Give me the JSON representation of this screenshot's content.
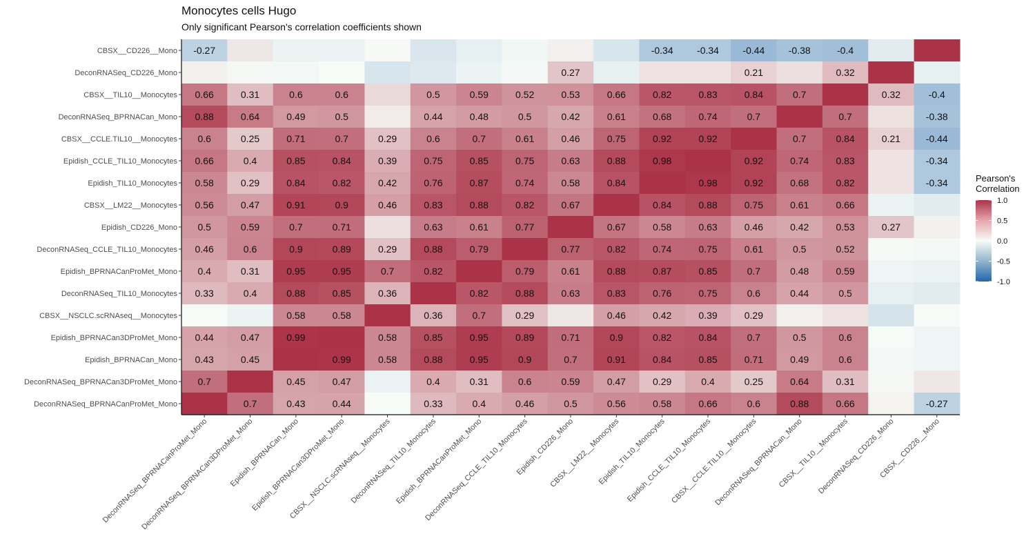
{
  "chart_data": {
    "type": "heatmap",
    "title": "Monocytes cells Hugo",
    "subtitle": "Only significant Pearson's correlation coefficients shown",
    "legend": {
      "title_line1": "Pearson's",
      "title_line2": "Correlation",
      "ticks": [
        1.0,
        0.5,
        0.0,
        -0.5,
        -1.0
      ],
      "tick_labels": [
        "1.0",
        "0.5",
        "0.0",
        "-0.5",
        "-1.0"
      ],
      "low_color": "#2166ac",
      "mid_color": "#f7fbf7",
      "high_color": "#ab3348",
      "placement": "right"
    },
    "row_labels": [
      "CBSX__CD226__Mono",
      "DeconRNASeq_CD226_Mono",
      "CBSX__TIL10__Monocytes",
      "DeconRNASeq_BPRNACan_Mono",
      "CBSX__CCLE.TIL10__Monocytes",
      "Epidish_CCLE_TIL10_Monocytes",
      "Epidish_TIL10_Monocytes",
      "CBSX__LM22__Monocytes",
      "Epidish_CD226_Mono",
      "DeconRNASeq_CCLE_TIL10_Monocytes",
      "Epidish_BPRNACanProMet_Mono",
      "DeconRNASeq_TIL10_Monocytes",
      "CBSX__NSCLC.scRNAseq__Monocytes",
      "Epidish_BPRNACan3DProMet_Mono",
      "Epidish_BPRNACan_Mono",
      "DeconRNASeq_BPRNACan3DProMet_Mono",
      "DeconRNASeq_BPRNACanProMet_Mono"
    ],
    "col_labels": [
      "DeconRNASeq_BPRNACanProMet_Mono",
      "DeconRNASeq_BPRNACan3DProMet_Mono",
      "Epidish_BPRNACan_Mono",
      "Epidish_BPRNACan3DProMet_Mono",
      "CBSX__NSCLC.scRNAseq__Monocytes",
      "DeconRNASeq_TIL10_Monocytes",
      "Epidish_BPRNACanProMet_Mono",
      "DeconRNASeq_CCLE_TIL10_Monocytes",
      "Epidish_CD226_Mono",
      "CBSX__LM22__Monocytes",
      "Epidish_TIL10_Monocytes",
      "Epidish_CCLE_TIL10_Monocytes",
      "CBSX__CCLE.TIL10__Monocytes",
      "DeconRNASeq_BPRNACan_Mono",
      "CBSX__TIL10__Monocytes",
      "DeconRNASeq_CD226_Mono",
      "CBSX__CD226__Mono"
    ],
    "values": [
      [
        -0.27,
        0.1,
        -0.05,
        -0.06,
        0.01,
        -0.14,
        -0.08,
        -0.03,
        0.06,
        -0.15,
        -0.34,
        -0.34,
        -0.44,
        -0.38,
        -0.4,
        -0.1,
        1.0
      ],
      [
        0.05,
        0.02,
        -0.02,
        0.0,
        -0.15,
        -0.12,
        -0.05,
        -0.02,
        0.27,
        -0.07,
        0.12,
        0.12,
        0.21,
        0.14,
        0.32,
        1.0,
        -0.08
      ],
      [
        0.66,
        0.31,
        0.6,
        0.6,
        0.17,
        0.5,
        0.59,
        0.52,
        0.53,
        0.66,
        0.82,
        0.83,
        0.84,
        0.7,
        1.0,
        0.32,
        -0.4
      ],
      [
        0.88,
        0.64,
        0.49,
        0.5,
        0.08,
        0.44,
        0.48,
        0.5,
        0.42,
        0.61,
        0.68,
        0.74,
        0.7,
        1.0,
        0.7,
        0.13,
        -0.38
      ],
      [
        0.6,
        0.25,
        0.71,
        0.7,
        0.29,
        0.6,
        0.7,
        0.61,
        0.46,
        0.75,
        0.92,
        0.92,
        1.0,
        0.7,
        0.84,
        0.21,
        -0.44
      ],
      [
        0.66,
        0.4,
        0.85,
        0.84,
        0.39,
        0.75,
        0.85,
        0.75,
        0.63,
        0.88,
        0.98,
        1.0,
        0.92,
        0.74,
        0.83,
        0.12,
        -0.34
      ],
      [
        0.58,
        0.29,
        0.84,
        0.82,
        0.42,
        0.76,
        0.87,
        0.74,
        0.58,
        0.84,
        1.0,
        0.98,
        0.92,
        0.68,
        0.82,
        0.12,
        -0.34
      ],
      [
        0.56,
        0.47,
        0.91,
        0.9,
        0.46,
        0.83,
        0.88,
        0.82,
        0.67,
        1.0,
        0.84,
        0.88,
        0.75,
        0.61,
        0.66,
        -0.05,
        -0.1
      ],
      [
        0.5,
        0.59,
        0.7,
        0.71,
        0.14,
        0.63,
        0.61,
        0.77,
        1.0,
        0.67,
        0.58,
        0.63,
        0.46,
        0.42,
        0.53,
        0.27,
        0.05
      ],
      [
        0.46,
        0.6,
        0.9,
        0.89,
        0.29,
        0.88,
        0.79,
        1.0,
        0.77,
        0.82,
        0.74,
        0.75,
        0.61,
        0.5,
        0.52,
        -0.01,
        -0.02
      ],
      [
        0.4,
        0.31,
        0.95,
        0.95,
        0.7,
        0.82,
        1.0,
        0.79,
        0.61,
        0.88,
        0.87,
        0.85,
        0.7,
        0.48,
        0.59,
        -0.04,
        -0.06
      ],
      [
        0.33,
        0.4,
        0.88,
        0.85,
        0.36,
        1.0,
        0.82,
        0.88,
        0.63,
        0.83,
        0.76,
        0.75,
        0.6,
        0.44,
        0.5,
        -0.08,
        -0.1
      ],
      [
        0.0,
        -0.05,
        0.58,
        0.58,
        1.0,
        0.36,
        0.7,
        0.29,
        0.1,
        0.46,
        0.42,
        0.39,
        0.29,
        0.06,
        0.12,
        -0.16,
        0.0
      ],
      [
        0.44,
        0.47,
        0.99,
        1.0,
        0.58,
        0.85,
        0.95,
        0.89,
        0.71,
        0.9,
        0.82,
        0.84,
        0.7,
        0.5,
        0.6,
        0.0,
        -0.04
      ],
      [
        0.43,
        0.45,
        1.0,
        0.99,
        0.58,
        0.88,
        0.95,
        0.9,
        0.7,
        0.91,
        0.84,
        0.85,
        0.71,
        0.49,
        0.6,
        -0.02,
        -0.04
      ],
      [
        0.7,
        1.0,
        0.45,
        0.47,
        -0.06,
        0.4,
        0.31,
        0.6,
        0.59,
        0.47,
        0.29,
        0.4,
        0.25,
        0.64,
        0.31,
        0.02,
        0.1
      ],
      [
        1.0,
        0.7,
        0.43,
        0.44,
        0.0,
        0.33,
        0.4,
        0.46,
        0.5,
        0.56,
        0.58,
        0.66,
        0.6,
        0.88,
        0.66,
        0.04,
        -0.27
      ]
    ],
    "labels": [
      [
        "-0.27",
        "",
        "",
        "",
        "",
        "",
        "",
        "",
        "",
        "",
        "-0.34",
        "-0.34",
        "-0.44",
        "-0.38",
        "-0.4",
        "",
        ""
      ],
      [
        "",
        "",
        "",
        "",
        "",
        "",
        "",
        "",
        "0.27",
        "",
        "",
        "",
        "0.21",
        "",
        "0.32",
        "",
        ""
      ],
      [
        "0.66",
        "0.31",
        "0.6",
        "0.6",
        "",
        "0.5",
        "0.59",
        "0.52",
        "0.53",
        "0.66",
        "0.82",
        "0.83",
        "0.84",
        "0.7",
        "",
        "0.32",
        "-0.4"
      ],
      [
        "0.88",
        "0.64",
        "0.49",
        "0.5",
        "",
        "0.44",
        "0.48",
        "0.5",
        "0.42",
        "0.61",
        "0.68",
        "0.74",
        "0.7",
        "",
        "0.7",
        "",
        "-0.38"
      ],
      [
        "0.6",
        "0.25",
        "0.71",
        "0.7",
        "0.29",
        "0.6",
        "0.7",
        "0.61",
        "0.46",
        "0.75",
        "0.92",
        "0.92",
        "",
        "0.7",
        "0.84",
        "0.21",
        "-0.44"
      ],
      [
        "0.66",
        "0.4",
        "0.85",
        "0.84",
        "0.39",
        "0.75",
        "0.85",
        "0.75",
        "0.63",
        "0.88",
        "0.98",
        "",
        "0.92",
        "0.74",
        "0.83",
        "",
        "-0.34"
      ],
      [
        "0.58",
        "0.29",
        "0.84",
        "0.82",
        "0.42",
        "0.76",
        "0.87",
        "0.74",
        "0.58",
        "0.84",
        "",
        "0.98",
        "0.92",
        "0.68",
        "0.82",
        "",
        "-0.34"
      ],
      [
        "0.56",
        "0.47",
        "0.91",
        "0.9",
        "0.46",
        "0.83",
        "0.88",
        "0.82",
        "0.67",
        "",
        "0.84",
        "0.88",
        "0.75",
        "0.61",
        "0.66",
        "",
        ""
      ],
      [
        "0.5",
        "0.59",
        "0.7",
        "0.71",
        "",
        "0.63",
        "0.61",
        "0.77",
        "",
        "0.67",
        "0.58",
        "0.63",
        "0.46",
        "0.42",
        "0.53",
        "0.27",
        ""
      ],
      [
        "0.46",
        "0.6",
        "0.9",
        "0.89",
        "0.29",
        "0.88",
        "0.79",
        "",
        "0.77",
        "0.82",
        "0.74",
        "0.75",
        "0.61",
        "0.5",
        "0.52",
        "",
        ""
      ],
      [
        "0.4",
        "0.31",
        "0.95",
        "0.95",
        "0.7",
        "0.82",
        "",
        "0.79",
        "0.61",
        "0.88",
        "0.87",
        "0.85",
        "0.7",
        "0.48",
        "0.59",
        "",
        ""
      ],
      [
        "0.33",
        "0.4",
        "0.88",
        "0.85",
        "0.36",
        "",
        "0.82",
        "0.88",
        "0.63",
        "0.83",
        "0.76",
        "0.75",
        "0.6",
        "0.44",
        "0.5",
        "",
        ""
      ],
      [
        "",
        "",
        "0.58",
        "0.58",
        "",
        "0.36",
        "0.7",
        "0.29",
        "",
        "0.46",
        "0.42",
        "0.39",
        "0.29",
        "",
        "",
        "",
        ""
      ],
      [
        "0.44",
        "0.47",
        "0.99",
        "",
        "0.58",
        "0.85",
        "0.95",
        "0.89",
        "0.71",
        "0.9",
        "0.82",
        "0.84",
        "0.7",
        "0.5",
        "0.6",
        "",
        ""
      ],
      [
        "0.43",
        "0.45",
        "",
        "0.99",
        "0.58",
        "0.88",
        "0.95",
        "0.9",
        "0.7",
        "0.91",
        "0.84",
        "0.85",
        "0.71",
        "0.49",
        "0.6",
        "",
        ""
      ],
      [
        "0.7",
        "",
        "0.45",
        "0.47",
        "",
        "0.4",
        "0.31",
        "0.6",
        "0.59",
        "0.47",
        "0.29",
        "0.4",
        "0.25",
        "0.64",
        "0.31",
        "",
        ""
      ],
      [
        "",
        "0.7",
        "0.43",
        "0.44",
        "",
        "0.33",
        "0.4",
        "0.46",
        "0.5",
        "0.56",
        "0.58",
        "0.66",
        "0.6",
        "0.88",
        "0.66",
        "",
        "-0.27"
      ]
    ]
  }
}
